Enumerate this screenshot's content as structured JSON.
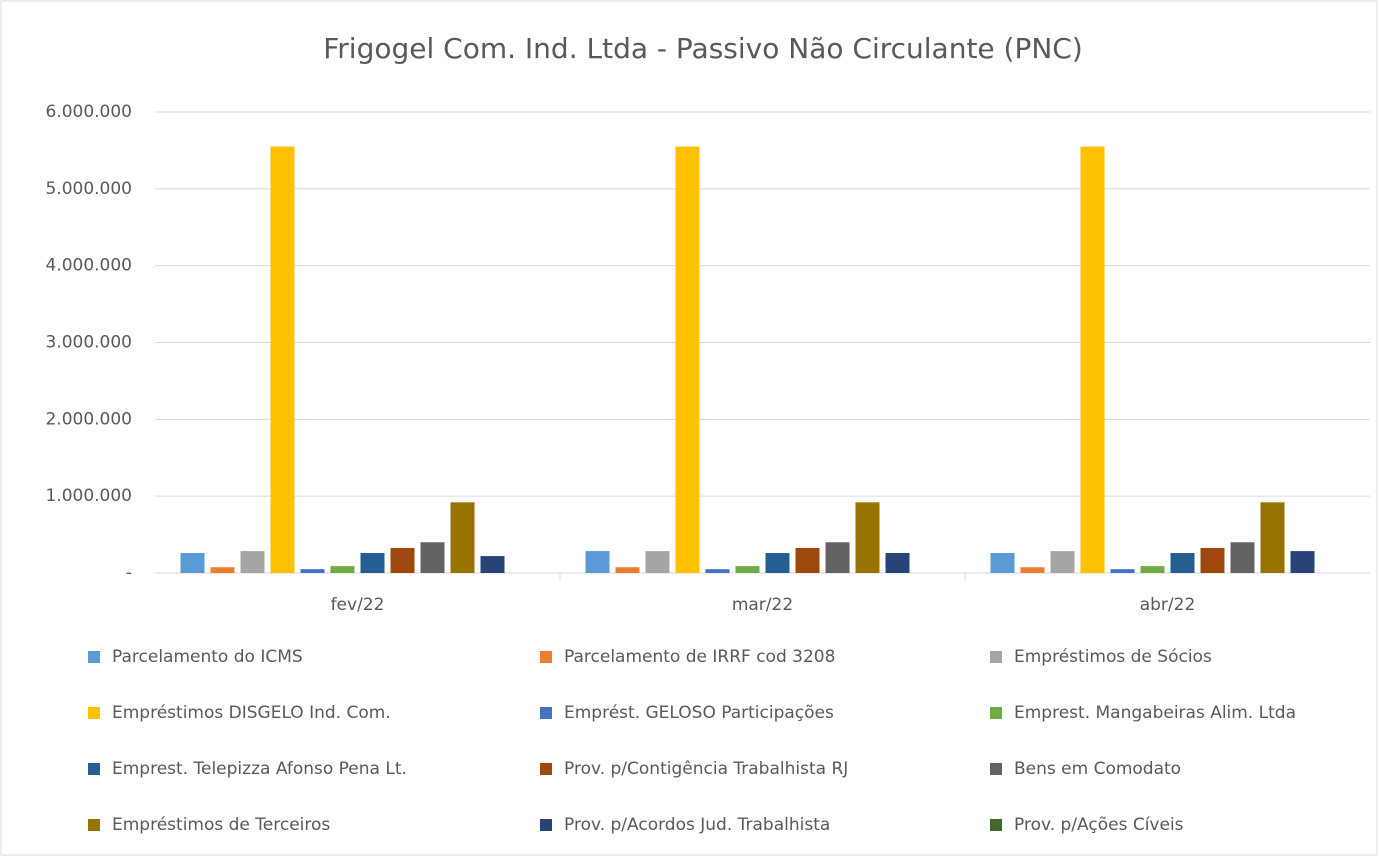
{
  "chart_data": {
    "type": "bar",
    "title": "Frigogel Com. Ind. Ltda - Passivo Não Circulante (PNC)",
    "categories": [
      "fev/22",
      "mar/22",
      "abr/22"
    ],
    "series": [
      {
        "name": "Parcelamento do ICMS",
        "color": "#5b9bd5",
        "values": [
          260000,
          285000,
          260000
        ]
      },
      {
        "name": "Parcelamento de IRRF cod 3208",
        "color": "#ed7d31",
        "values": [
          75000,
          75000,
          75000
        ]
      },
      {
        "name": "Empréstimos de Sócios",
        "color": "#a5a5a5",
        "values": [
          285000,
          285000,
          285000
        ]
      },
      {
        "name": "Empréstimos DISGELO Ind. Com.",
        "color": "#ffc000",
        "values": [
          5550000,
          5550000,
          5550000
        ]
      },
      {
        "name": "Emprést. GELOSO Participações",
        "color": "#4472c4",
        "values": [
          50000,
          50000,
          50000
        ]
      },
      {
        "name": "Emprest. Mangabeiras Alim. Ltda",
        "color": "#70ad47",
        "values": [
          90000,
          90000,
          90000
        ]
      },
      {
        "name": "Emprest. Telepizza Afonso Pena Lt.",
        "color": "#255e91",
        "values": [
          260000,
          260000,
          260000
        ]
      },
      {
        "name": "Prov. p/Contigência Trabalhista RJ",
        "color": "#9e480e",
        "values": [
          325000,
          325000,
          325000
        ]
      },
      {
        "name": "Bens em Comodato",
        "color": "#636363",
        "values": [
          400000,
          400000,
          400000
        ]
      },
      {
        "name": "Empréstimos de Terceiros",
        "color": "#997300",
        "values": [
          920000,
          920000,
          920000
        ]
      },
      {
        "name": "Prov. p/Acordos Jud. Trabalhista",
        "color": "#264478",
        "values": [
          220000,
          260000,
          285000
        ]
      },
      {
        "name": "Prov. p/Ações Cíveis",
        "color": "#43682b",
        "values": [
          0,
          0,
          0
        ]
      }
    ],
    "ylim": [
      0,
      6000000
    ],
    "yticks": [
      {
        "value": 0,
        "label": "-"
      },
      {
        "value": 1000000,
        "label": "1.000.000"
      },
      {
        "value": 2000000,
        "label": "2.000.000"
      },
      {
        "value": 3000000,
        "label": "3.000.000"
      },
      {
        "value": 4000000,
        "label": "4.000.000"
      },
      {
        "value": 5000000,
        "label": "5.000.000"
      },
      {
        "value": 6000000,
        "label": "6.000.000"
      }
    ],
    "grid": true
  }
}
